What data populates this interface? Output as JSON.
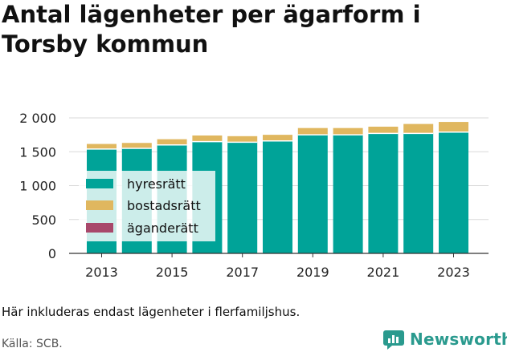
{
  "title": "Antal lägenheter per ägarform i Torsby kommun",
  "note": "Här inkluderas endast lägenheter i flerfamiljshus.",
  "source": "Källa: SCB.",
  "brand": {
    "name": "Newsworthy",
    "icon": "newsworthy-chart-logo-icon"
  },
  "chart_data": {
    "type": "bar",
    "stacked": true,
    "categories": [
      "2013",
      "2014",
      "2015",
      "2016",
      "2017",
      "2018",
      "2019",
      "2020",
      "2021",
      "2022",
      "2023"
    ],
    "x_tick_labels": [
      "2013",
      "2015",
      "2017",
      "2019",
      "2021",
      "2023"
    ],
    "y_tick_labels": [
      "0",
      "500",
      "1 000",
      "1 500",
      "2 000"
    ],
    "y_ticks": [
      0,
      500,
      1000,
      1500,
      2000
    ],
    "ylim": [
      0,
      2000
    ],
    "grid": true,
    "legend_position": "inside-left",
    "series": [
      {
        "name": "hyresrätt",
        "color": "#00a398",
        "values": [
          1540,
          1550,
          1600,
          1650,
          1640,
          1660,
          1750,
          1750,
          1770,
          1770,
          1790
        ]
      },
      {
        "name": "bostadsrätt",
        "color": "#e0b75f",
        "values": [
          75,
          80,
          85,
          90,
          90,
          90,
          100,
          100,
          100,
          140,
          150
        ]
      },
      {
        "name": "äganderätt",
        "color": "#a8486b",
        "values": [
          0,
          0,
          0,
          0,
          0,
          0,
          0,
          0,
          0,
          0,
          0
        ]
      }
    ]
  }
}
